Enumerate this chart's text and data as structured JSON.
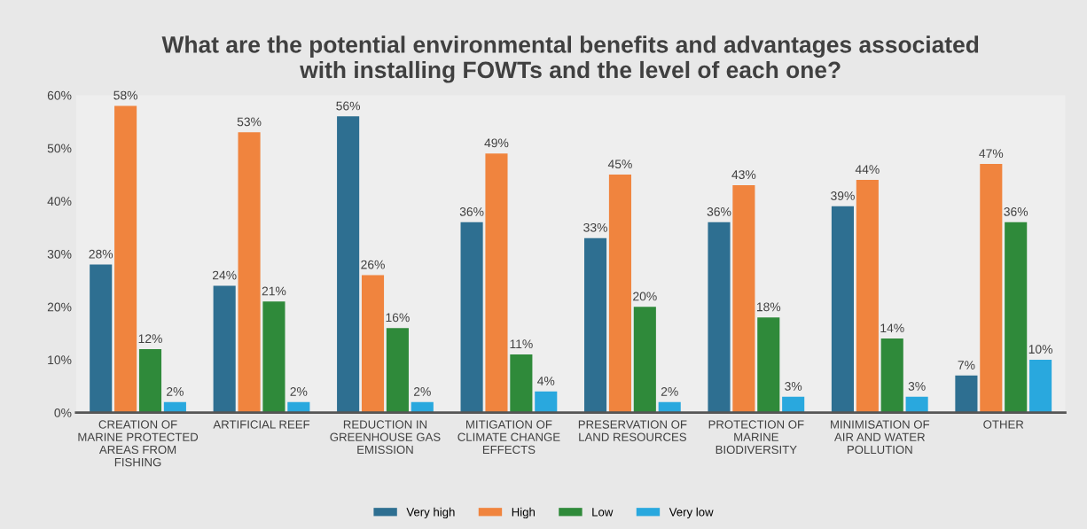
{
  "chart_data": {
    "type": "bar",
    "title": "What are the potential environmental benefits and advantages associated\nwith installing FOWTs and the level of each one?",
    "categories": [
      "CREATION OF\nMARINE PROTECTED\nAREAS FROM\nFISHING",
      "ARTIFICIAL REEF",
      "REDUCTION IN\nGREENHOUSE GAS\nEMISSION",
      "MITIGATION OF\nCLIMATE CHANGE\nEFFECTS",
      "PRESERVATION OF\nLAND RESOURCES",
      "PROTECTION OF\nMARINE\nBIODIVERSITY",
      "MINIMISATION OF\nAIR AND WATER\nPOLLUTION",
      "OTHER"
    ],
    "series": [
      {
        "name": "Very high",
        "color": "#2e6f91",
        "values": [
          28,
          24,
          56,
          36,
          33,
          36,
          39,
          7
        ],
        "value_labels": [
          "28%",
          "24%",
          "56%",
          "36%",
          "33%",
          "36%",
          "39%",
          "7%"
        ]
      },
      {
        "name": "High",
        "color": "#f0843e",
        "values": [
          58,
          53,
          26,
          49,
          45,
          43,
          44,
          47
        ],
        "value_labels": [
          "58%",
          "53%",
          "26%",
          "49%",
          "45%",
          "43%",
          "44%",
          "47%"
        ]
      },
      {
        "name": "Low",
        "color": "#2f8a3a",
        "values": [
          12,
          21,
          16,
          11,
          20,
          18,
          14,
          36
        ],
        "value_labels": [
          "12%",
          "21%",
          "16%",
          "11%",
          "20%",
          "18%",
          "14%",
          "36%"
        ]
      },
      {
        "name": "Very low",
        "color": "#29a8de",
        "values": [
          2,
          2,
          2,
          4,
          2,
          3,
          3,
          10
        ],
        "value_labels": [
          "2%",
          "2%",
          "2%",
          "4%",
          "2%",
          "3%",
          "3%",
          "10%"
        ]
      }
    ],
    "ylim": [
      0,
      60
    ],
    "yticks": [
      {
        "value": 0,
        "label": "0%"
      },
      {
        "value": 10,
        "label": "10%"
      },
      {
        "value": 20,
        "label": "20%"
      },
      {
        "value": 30,
        "label": "30%"
      },
      {
        "value": 40,
        "label": "40%"
      },
      {
        "value": 50,
        "label": "50%"
      },
      {
        "value": 60,
        "label": "60%"
      }
    ],
    "grid": false,
    "legend": "bottom"
  }
}
